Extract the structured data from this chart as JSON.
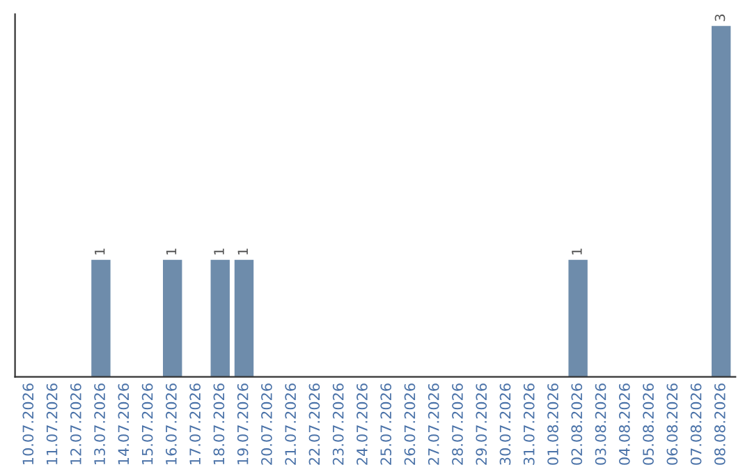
{
  "chart_data": {
    "type": "bar",
    "categories": [
      "10.07.2026",
      "11.07.2026",
      "12.07.2026",
      "13.07.2026",
      "14.07.2026",
      "15.07.2026",
      "16.07.2026",
      "17.07.2026",
      "18.07.2026",
      "19.07.2026",
      "20.07.2026",
      "21.07.2026",
      "22.07.2026",
      "23.07.2026",
      "24.07.2026",
      "25.07.2026",
      "26.07.2026",
      "27.07.2026",
      "28.07.2026",
      "29.07.2026",
      "30.07.2026",
      "31.07.2026",
      "01.08.2026",
      "02.08.2026",
      "03.08.2026",
      "04.08.2026",
      "05.08.2026",
      "06.08.2026",
      "07.08.2026",
      "08.08.2026"
    ],
    "values": [
      0,
      0,
      0,
      1,
      0,
      0,
      1,
      0,
      1,
      1,
      0,
      0,
      0,
      0,
      0,
      0,
      0,
      0,
      0,
      0,
      0,
      0,
      0,
      1,
      0,
      0,
      0,
      0,
      0,
      3
    ],
    "value_labels": [
      null,
      null,
      null,
      "1",
      null,
      null,
      "1",
      null,
      "1",
      "1",
      null,
      null,
      null,
      null,
      null,
      null,
      null,
      null,
      null,
      null,
      null,
      null,
      null,
      "1",
      null,
      null,
      null,
      null,
      null,
      "3"
    ],
    "color": "#6e8cab",
    "ylim": [
      0,
      3.1
    ],
    "tick_labels": "x",
    "grid": false,
    "legend": false
  }
}
